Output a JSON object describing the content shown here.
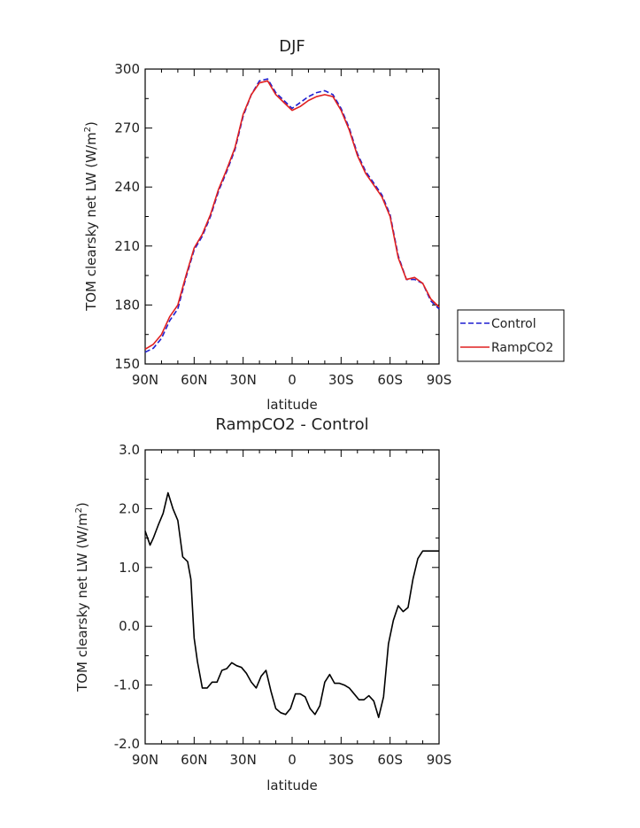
{
  "chart_data": [
    {
      "type": "line",
      "title": "DJF",
      "xlabel": "latitude",
      "ylabel": "TOM clearsky net LW (W/m",
      "ylabel_sup": "2",
      "ylabel_close": ")",
      "ylim": [
        150,
        300
      ],
      "yticks": [
        "150",
        "180",
        "210",
        "240",
        "270",
        "300"
      ],
      "xlim": [
        -90,
        90
      ],
      "xtick_labels": [
        "90N",
        "60N",
        "30N",
        "0",
        "30S",
        "60S",
        "90S"
      ],
      "grid": false,
      "legend": "right",
      "x": [
        -90,
        -85,
        -80,
        -75,
        -70,
        -65,
        -60,
        -55,
        -50,
        -45,
        -40,
        -35,
        -30,
        -25,
        -20,
        -15,
        -10,
        -5,
        0,
        5,
        10,
        15,
        20,
        25,
        30,
        35,
        40,
        45,
        50,
        55,
        60,
        65,
        70,
        75,
        80,
        85,
        90
      ],
      "series": [
        {
          "name": "Control",
          "color": "#1f1fd0",
          "dash": "dashed",
          "values": [
            156,
            158,
            163,
            172,
            178,
            194,
            208,
            215,
            225,
            238,
            248,
            259,
            276,
            287,
            294,
            295,
            288,
            284,
            280,
            283,
            286,
            288,
            289,
            287,
            280,
            270,
            257,
            248,
            242,
            236,
            226,
            205,
            193,
            193,
            191,
            182,
            178
          ]
        },
        {
          "name": "RampCO2",
          "color": "#e02020",
          "dash": "solid",
          "values": [
            157.5,
            160,
            165,
            174,
            180,
            195,
            209,
            216,
            226,
            239,
            249,
            260,
            277,
            287,
            293,
            294,
            287,
            283,
            279,
            281,
            284,
            286,
            287,
            286,
            279,
            269,
            256,
            247,
            241,
            235,
            225,
            204,
            193,
            194,
            191,
            183,
            179
          ]
        }
      ]
    },
    {
      "type": "line",
      "title": "RampCO2 - Control",
      "xlabel": "latitude",
      "ylabel": "TOM clearsky net LW (W/m",
      "ylabel_sup": "2",
      "ylabel_close": ")",
      "ylim": [
        -2.0,
        3.0
      ],
      "yticks": [
        "-2.0",
        "-1.0",
        "0.0",
        "1.0",
        "2.0",
        "3.0"
      ],
      "xlim": [
        -90,
        90
      ],
      "xtick_labels": [
        "90N",
        "60N",
        "30N",
        "0",
        "30S",
        "60S",
        "90S"
      ],
      "grid": false,
      "legend": "none",
      "x": [
        -90,
        -87,
        -85,
        -82,
        -79,
        -76,
        -73,
        -70,
        -67,
        -64,
        -62,
        -60,
        -58,
        -55,
        -52,
        -49,
        -46,
        -43,
        -40,
        -37,
        -34,
        -31,
        -28,
        -25,
        -22,
        -19,
        -16,
        -13,
        -10,
        -7,
        -4,
        -1,
        2,
        5,
        8,
        11,
        14,
        17,
        20,
        23,
        26,
        29,
        32,
        35,
        38,
        41,
        44,
        47,
        50,
        53,
        56,
        59,
        62,
        65,
        68,
        71,
        74,
        77,
        80,
        83,
        86,
        89,
        90
      ],
      "series": [
        {
          "name": "",
          "color": "#000000",
          "dash": "solid",
          "values": [
            1.62,
            1.38,
            1.5,
            1.72,
            1.92,
            2.27,
            2.0,
            1.8,
            1.18,
            1.1,
            0.8,
            -0.2,
            -0.6,
            -1.05,
            -1.05,
            -0.95,
            -0.95,
            -0.75,
            -0.72,
            -0.62,
            -0.67,
            -0.7,
            -0.8,
            -0.95,
            -1.05,
            -0.85,
            -0.75,
            -1.1,
            -1.4,
            -1.47,
            -1.5,
            -1.4,
            -1.15,
            -1.15,
            -1.2,
            -1.4,
            -1.5,
            -1.35,
            -0.95,
            -0.82,
            -0.97,
            -0.97,
            -1.0,
            -1.05,
            -1.15,
            -1.25,
            -1.25,
            -1.18,
            -1.27,
            -1.55,
            -1.2,
            -0.3,
            0.1,
            0.35,
            0.25,
            0.32,
            0.8,
            1.15,
            1.28,
            1.28,
            1.28,
            1.28,
            1.28
          ]
        }
      ]
    }
  ]
}
